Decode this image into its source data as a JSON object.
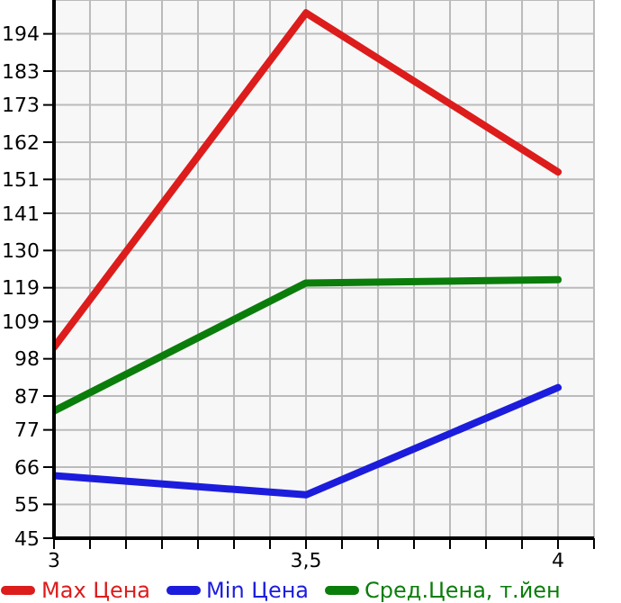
{
  "chart_data": {
    "type": "line",
    "x": [
      3,
      3.5,
      4
    ],
    "series": [
      {
        "name": "Max Цена",
        "color": "#dd1c1c",
        "values": [
          101.4,
          200.2,
          153.2
        ]
      },
      {
        "name": "Min Цена",
        "color": "#1c1cdd",
        "values": [
          63.5,
          57.8,
          89.5
        ]
      },
      {
        "name": "Сред.Цена, т.йен",
        "color": "#0b7d0b",
        "values": [
          82.6,
          120.4,
          121.4
        ]
      }
    ],
    "xlim": [
      3,
      4.0714
    ],
    "xticks": [
      3,
      {
        "value": 3.0714,
        "label": null
      },
      {
        "value": 3.1429,
        "label": null
      },
      {
        "value": 3.2143,
        "label": null
      },
      {
        "value": 3.2857,
        "label": null
      },
      {
        "value": 3.3571,
        "label": null
      },
      {
        "value": 3.4286,
        "label": null
      },
      {
        "value": 3.5,
        "label": "3,5"
      },
      {
        "value": 3.5714,
        "label": null
      },
      {
        "value": 3.6429,
        "label": null
      },
      {
        "value": 3.7143,
        "label": null
      },
      {
        "value": 3.7857,
        "label": null
      },
      {
        "value": 3.8571,
        "label": null
      },
      {
        "value": 3.9286,
        "label": null
      },
      4,
      {
        "value": 4.0714,
        "label": null
      }
    ],
    "ylim": [
      45,
      204
    ],
    "yticks": [
      45,
      55,
      66,
      77,
      87,
      98,
      109,
      119,
      130,
      141,
      151,
      162,
      173,
      183,
      194
    ],
    "grid": true,
    "legend": "bottom",
    "marker": "none",
    "line_style": "solid"
  }
}
